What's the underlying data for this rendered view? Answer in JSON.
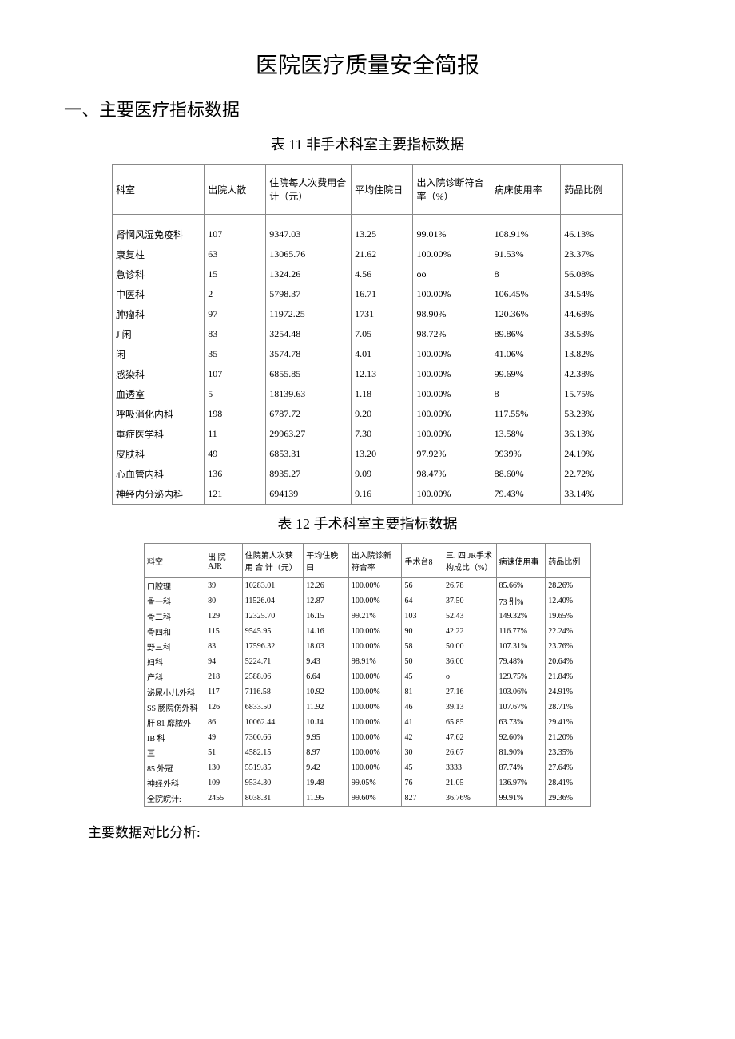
{
  "doc_title": "医院医疗质量安全简报",
  "section1_heading": "一、主要医疗指标数据",
  "table11_caption": "表 11 非手术科室主要指标数据",
  "table11": {
    "columns": [
      "科室",
      "出院人散",
      "住院每人次费用合计（元）",
      "平均住院日",
      "出入院诊断符合率（%）",
      "病床使用率",
      "药品比例"
    ],
    "rows": [
      [
        "肾惘风湿免疫科",
        "107",
        "9347.03",
        "13.25",
        "99.01%",
        "108.91%",
        "46.13%"
      ],
      [
        "康复柱",
        "63",
        "13065.76",
        "21.62",
        "100.00%",
        "91.53%",
        "23.37%"
      ],
      [
        "急诊科",
        "15",
        "1324.26",
        "4.56",
        "oo",
        "8",
        "56.08%"
      ],
      [
        "中医科",
        "2",
        "5798.37",
        "16.71",
        "100.00%",
        "106.45%",
        "34.54%"
      ],
      [
        "肿瘤科",
        "97",
        "11972.25",
        "1731",
        "98.90%",
        "120.36%",
        "44.68%"
      ],
      [
        "J 闲",
        "83",
        "3254.48",
        "7.05",
        "98.72%",
        "89.86%",
        "38.53%"
      ],
      [
        "  闲",
        "35",
        "3574.78",
        "4.01",
        "100.00%",
        "41.06%",
        "13.82%"
      ],
      [
        "感染科",
        "107",
        "6855.85",
        "12.13",
        "100.00%",
        "99.69%",
        "42.38%"
      ],
      [
        "血透室",
        "5",
        "18139.63",
        "1.18",
        "100.00%",
        "8",
        "15.75%"
      ],
      [
        "呼吸消化内科",
        "198",
        "6787.72",
        "9.20",
        "100.00%",
        "117.55%",
        "53.23%"
      ],
      [
        "重症医学科",
        "11",
        "29963.27",
        "7.30",
        "100.00%",
        "13.58%",
        "36.13%"
      ],
      [
        "皮肤科",
        "49",
        "6853.31",
        "13.20",
        "97.92%",
        "9939%",
        "24.19%"
      ],
      [
        "心血管内科",
        "136",
        "8935.27",
        "9.09",
        "98.47%",
        "88.60%",
        "22.72%"
      ],
      [
        "神经内分泌内科",
        "121",
        "694139",
        "9.16",
        "100.00%",
        "79.43%",
        "33.14%"
      ]
    ],
    "col_widths": [
      "110px",
      "70px",
      "100px",
      "70px",
      "90px",
      "80px",
      "70px"
    ]
  },
  "table12_caption": "表 12 手术科室主要指标数据",
  "table12": {
    "columns": [
      "料空",
      "出 院AJR",
      "住院第人次获 用 合 计（元）",
      "平均住晚曰",
      "出入院诊新符合率",
      "手术台8",
      "三. 四 JR手术构成比（%）",
      "病诔使用事",
      "药品比例"
    ],
    "rows": [
      [
        "口腔理",
        "39",
        "10283.01",
        "12.26",
        "100.00%",
        "56",
        "26.78",
        "85.66%",
        "28.26%"
      ],
      [
        "骨一科",
        "80",
        "11526.04",
        "12.87",
        "100.00%",
        "64",
        "37.50",
        "73 别%",
        "12.40%"
      ],
      [
        "骨二科",
        "129",
        "12325.70",
        "16.15",
        "99.21%",
        "103",
        "52.43",
        "149.32%",
        "19.65%"
      ],
      [
        "骨四和",
        "115",
        "9545.95",
        "14.16",
        "100.00%",
        "90",
        "42.22",
        "116.77%",
        "22.24%"
      ],
      [
        "野三科",
        "83",
        "17596.32",
        "18.03",
        "100.00%",
        "58",
        "50.00",
        "107.31%",
        "23.76%"
      ],
      [
        "妇科",
        "94",
        "5224.71",
        "9.43",
        "98.91%",
        "50",
        "36.00",
        "79.48%",
        "20.64%"
      ],
      [
        "产科",
        "218",
        "2588.06",
        "6.64",
        "100.00%",
        "45",
        "o",
        "129.75%",
        "21.84%"
      ],
      [
        "泌尿小儿外科",
        "117",
        "7116.58",
        "10.92",
        "100.00%",
        "81",
        "27.16",
        "103.06%",
        "24.91%"
      ],
      [
        "SS 肠院伤外科",
        "126",
        "6833.50",
        "11.92",
        "100.00%",
        "46",
        "39.13",
        "107.67%",
        "28.71%"
      ],
      [
        "肝 81 靡脓外",
        "86",
        "10062.44",
        "10.J4",
        "100.00%",
        "41",
        "65.85",
        "63.73%",
        "29.41%"
      ],
      [
        "IB 科",
        "49",
        "7300.66",
        "9.95",
        "100.00%",
        "42",
        "47.62",
        "92.60%",
        "21.20%"
      ],
      [
        "亘",
        "51",
        "4582.15",
        "8.97",
        "100.00%",
        "30",
        "26.67",
        "81.90%",
        "23.35%"
      ],
      [
        "85 外冠",
        "130",
        "5519.85",
        "9.42",
        "100.00%",
        "45",
        "3333",
        "87.74%",
        "27.64%"
      ],
      [
        "神经外科",
        "109",
        "9534.30",
        "19.48",
        "99.05%",
        "76",
        "21.05",
        "136.97%",
        "28.41%"
      ],
      [
        "全院皖计:",
        "2455",
        "8038.31",
        "11.95",
        "99.60%",
        "827",
        "36.76%",
        "99.91%",
        "29.36%"
      ]
    ],
    "col_widths": [
      "70px",
      "40px",
      "70px",
      "50px",
      "60px",
      "45px",
      "60px",
      "55px",
      "50px"
    ]
  },
  "footer_text": "主要数据对比分析:"
}
